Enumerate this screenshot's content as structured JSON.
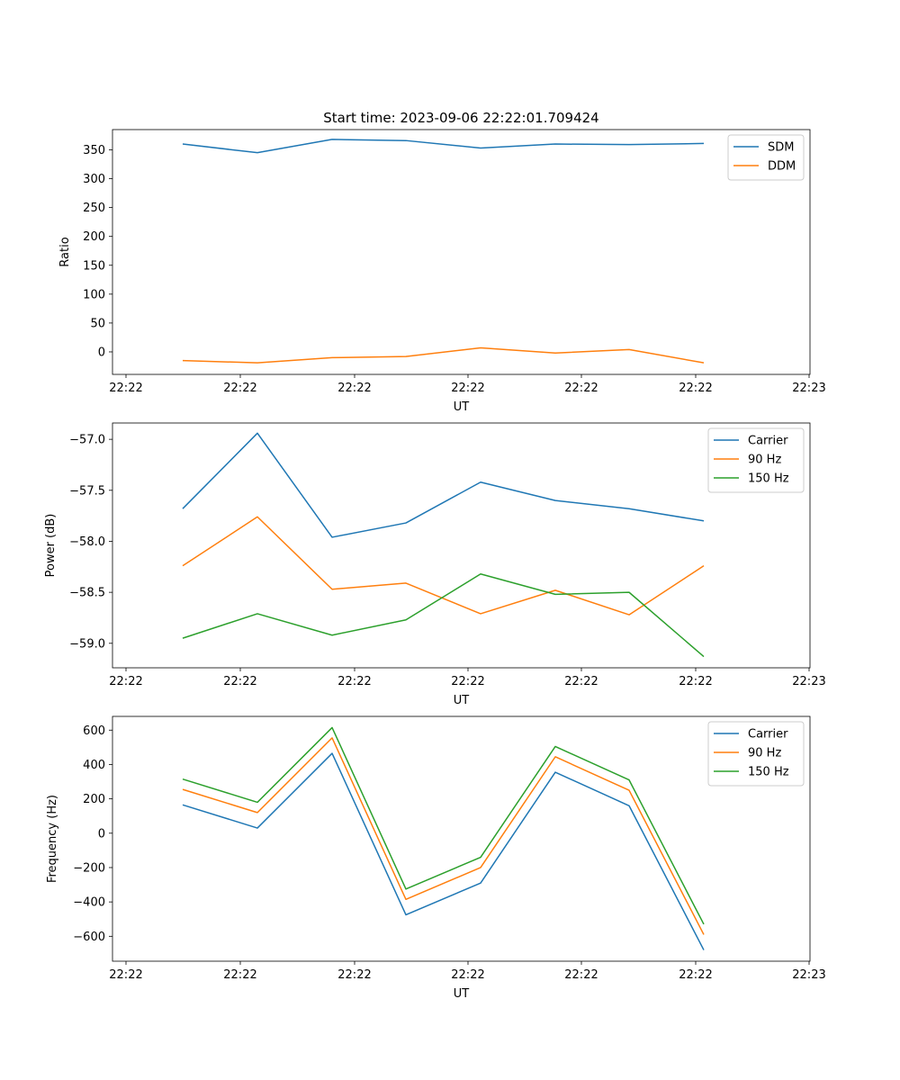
{
  "title": "Start time: 2023-09-06 22:22:01.709424",
  "colors": {
    "blue": "#1f77b4",
    "orange": "#ff7f0e",
    "green": "#2ca02c"
  },
  "chart_data": [
    {
      "type": "line",
      "xlabel": "UT",
      "ylabel": "Ratio",
      "x_ticks": [
        "22:22",
        "22:22",
        "22:22",
        "22:22",
        "22:22",
        "22:22",
        "22:23"
      ],
      "ylim": [
        -39,
        385
      ],
      "y_ticks": [
        0,
        50,
        100,
        150,
        200,
        250,
        300,
        350
      ],
      "legend": "top-right",
      "series": [
        {
          "name": "SDM",
          "color": "#1f77b4",
          "values": [
            360,
            345,
            368,
            366,
            353,
            360,
            359,
            361
          ]
        },
        {
          "name": "DDM",
          "color": "#ff7f0e",
          "values": [
            -15,
            -19,
            -10,
            -8,
            7,
            -2,
            4,
            -19
          ]
        }
      ]
    },
    {
      "type": "line",
      "xlabel": "UT",
      "ylabel": "Power (dB)",
      "x_ticks": [
        "22:22",
        "22:22",
        "22:22",
        "22:22",
        "22:22",
        "22:22",
        "22:23"
      ],
      "ylim": [
        -59.24,
        -56.84
      ],
      "y_ticks": [
        -59.0,
        -58.5,
        -58.0,
        -57.5,
        -57.0
      ],
      "y_tick_labels": [
        "−59.0",
        "−58.5",
        "−58.0",
        "−57.5",
        "−57.0"
      ],
      "legend": "top-right",
      "series": [
        {
          "name": "Carrier",
          "color": "#1f77b4",
          "values": [
            -57.68,
            -56.94,
            -57.96,
            -57.82,
            -57.42,
            -57.6,
            -57.68,
            -57.8
          ]
        },
        {
          "name": "90 Hz",
          "color": "#ff7f0e",
          "values": [
            -58.24,
            -57.76,
            -58.47,
            -58.41,
            -58.71,
            -58.48,
            -58.72,
            -58.24
          ]
        },
        {
          "name": "150 Hz",
          "color": "#2ca02c",
          "values": [
            -58.95,
            -58.71,
            -58.92,
            -58.77,
            -58.32,
            -58.52,
            -58.5,
            -59.13
          ]
        }
      ]
    },
    {
      "type": "line",
      "xlabel": "UT",
      "ylabel": "Frequency (Hz)",
      "x_ticks": [
        "22:22",
        "22:22",
        "22:22",
        "22:22",
        "22:22",
        "22:22",
        "22:23"
      ],
      "ylim": [
        -745,
        680
      ],
      "y_ticks": [
        -600,
        -400,
        -200,
        0,
        200,
        400,
        600
      ],
      "y_tick_labels": [
        "−600",
        "−400",
        "−200",
        "0",
        "200",
        "400",
        "600"
      ],
      "legend": "top-right",
      "series": [
        {
          "name": "Carrier",
          "color": "#1f77b4",
          "values": [
            165,
            30,
            465,
            -475,
            -290,
            355,
            160,
            -680
          ]
        },
        {
          "name": "90 Hz",
          "color": "#ff7f0e",
          "values": [
            255,
            120,
            555,
            -385,
            -200,
            445,
            250,
            -590
          ]
        },
        {
          "name": "150 Hz",
          "color": "#2ca02c",
          "values": [
            315,
            180,
            615,
            -325,
            -140,
            505,
            310,
            -530
          ]
        }
      ]
    }
  ]
}
